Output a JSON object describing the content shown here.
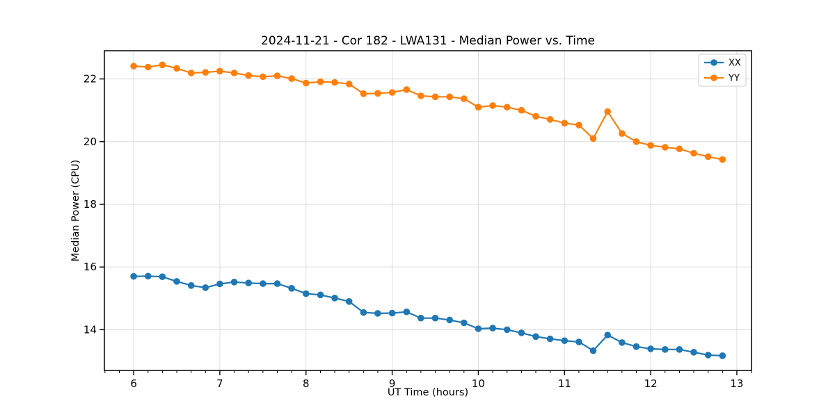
{
  "chart": {
    "title": "2024-11-21 - Cor 182 - LWA131 - Median Power vs. Time",
    "xlabel": "UT Time (hours)",
    "ylabel": "Median Power (CPU)"
  },
  "chart_data": {
    "type": "line",
    "title": "2024-11-21 - Cor 182 - LWA131 - Median Power vs. Time",
    "xlabel": "UT Time (hours)",
    "ylabel": "Median Power (CPU)",
    "xlim": [
      5.66,
      13.17
    ],
    "ylim": [
      12.7,
      22.9
    ],
    "x_ticks": [
      6,
      7,
      8,
      9,
      10,
      11,
      12,
      13
    ],
    "y_ticks": [
      14,
      16,
      18,
      20,
      22
    ],
    "x_minor_step": 0.166667,
    "grid": true,
    "grid_color": "#dcdcdc",
    "legend_position": "upper right",
    "x": [
      6.0,
      6.167,
      6.333,
      6.5,
      6.667,
      6.833,
      7.0,
      7.167,
      7.333,
      7.5,
      7.667,
      7.833,
      8.0,
      8.167,
      8.333,
      8.5,
      8.667,
      8.833,
      9.0,
      9.167,
      9.333,
      9.5,
      9.667,
      9.833,
      10.0,
      10.167,
      10.333,
      10.5,
      10.667,
      10.833,
      11.0,
      11.167,
      11.333,
      11.5,
      11.667,
      11.833,
      12.0,
      12.167,
      12.333,
      12.5,
      12.667,
      12.833
    ],
    "series": [
      {
        "name": "XX",
        "color": "#1f77b4",
        "values": [
          15.7,
          15.71,
          15.69,
          15.54,
          15.41,
          15.34,
          15.46,
          15.52,
          15.49,
          15.47,
          15.47,
          15.32,
          15.15,
          15.11,
          15.01,
          14.9,
          14.55,
          14.52,
          14.53,
          14.57,
          14.37,
          14.37,
          14.31,
          14.22,
          14.03,
          14.05,
          14.0,
          13.9,
          13.78,
          13.71,
          13.65,
          13.61,
          13.33,
          13.83,
          13.59,
          13.46,
          13.39,
          13.37,
          13.37,
          13.28,
          13.19,
          13.17
        ]
      },
      {
        "name": "YY",
        "color": "#ff7f0e",
        "values": [
          22.41,
          22.38,
          22.45,
          22.34,
          22.19,
          22.21,
          22.25,
          22.19,
          22.11,
          22.07,
          22.1,
          22.01,
          21.87,
          21.91,
          21.89,
          21.84,
          21.53,
          21.54,
          21.57,
          21.66,
          21.46,
          21.43,
          21.43,
          21.37,
          21.1,
          21.15,
          21.1,
          21.0,
          20.81,
          20.71,
          20.59,
          20.53,
          20.1,
          20.96,
          20.26,
          20.0,
          19.88,
          19.82,
          19.77,
          19.63,
          19.52,
          19.43
        ]
      }
    ]
  }
}
